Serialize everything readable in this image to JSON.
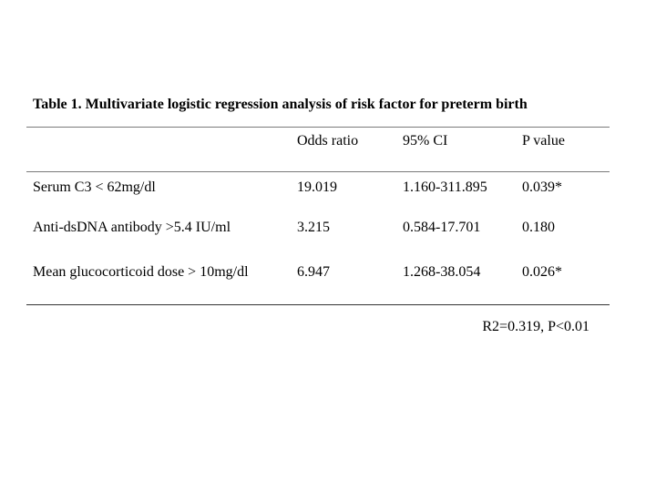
{
  "table": {
    "title": "Table 1. Multivariate logistic regression analysis of risk factor for preterm birth",
    "headers": [
      "",
      "Odds ratio",
      "95% CI",
      "P value"
    ],
    "rows": [
      [
        "Serum C3 < 62mg/dl",
        "19.019",
        "1.160-311.895",
        "0.039*"
      ],
      [
        "Anti-dsDNA antibody >5.4 IU/ml",
        "3.215",
        "0.584-17.701",
        "0.180"
      ],
      [
        "Mean glucocorticoid dose > 10mg/dl",
        "6.947",
        "1.268-38.054",
        "0.026*"
      ]
    ],
    "footnote": "R2=0.319, P<0.01"
  }
}
